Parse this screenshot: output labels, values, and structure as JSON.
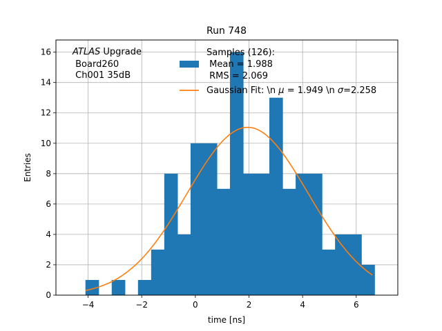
{
  "chart_data": {
    "type": "bar",
    "title": "Run 748",
    "xlabel": "time [ns]",
    "ylabel": "Entries",
    "xlim": [
      -5.2,
      7.55
    ],
    "ylim": [
      0,
      16.8
    ],
    "xticks": [
      -4,
      -2,
      0,
      2,
      4,
      6
    ],
    "yticks": [
      0,
      2,
      4,
      6,
      8,
      10,
      12,
      14,
      16
    ],
    "grid": true,
    "bin_width": 0.49,
    "histogram": {
      "name": "Samples (126):",
      "bins": [
        [
          -4.1,
          1
        ],
        [
          -3.12,
          1
        ],
        [
          -2.14,
          1
        ],
        [
          -1.65,
          3
        ],
        [
          -1.16,
          8
        ],
        [
          -0.67,
          4
        ],
        [
          -0.18,
          10
        ],
        [
          0.31,
          10
        ],
        [
          0.8,
          7
        ],
        [
          1.29,
          16
        ],
        [
          1.78,
          8
        ],
        [
          2.27,
          8
        ],
        [
          2.76,
          13
        ],
        [
          3.25,
          7
        ],
        [
          3.74,
          8
        ],
        [
          4.23,
          8
        ],
        [
          4.72,
          3
        ],
        [
          5.21,
          4
        ],
        [
          5.7,
          4
        ],
        [
          6.19,
          2
        ]
      ],
      "color": "#1f77b4"
    },
    "fit": {
      "name": "Gaussian Fit: \\n μ = 1.949 \\n σ=2.258",
      "amplitude": 11.05,
      "mu": 1.949,
      "sigma": 2.258,
      "x_range": [
        -4.1,
        6.6
      ],
      "color": "#ff7f0e"
    },
    "legend": {
      "placement": "top-center",
      "samples_lines": [
        "Samples (126):",
        " Mean = 1.988",
        " RMS = 2.069"
      ],
      "fit_prefix": "Gaussian Fit: \\n ",
      "fit_mu": "μ",
      "fit_mid": " = 1.949 \\n ",
      "fit_sigma": "σ",
      "fit_suffix": "=2.258"
    },
    "annotation": {
      "italic": "ATLAS",
      "rest": " Upgrade",
      "lines": [
        " Board260",
        " Ch001 35dB"
      ]
    }
  }
}
